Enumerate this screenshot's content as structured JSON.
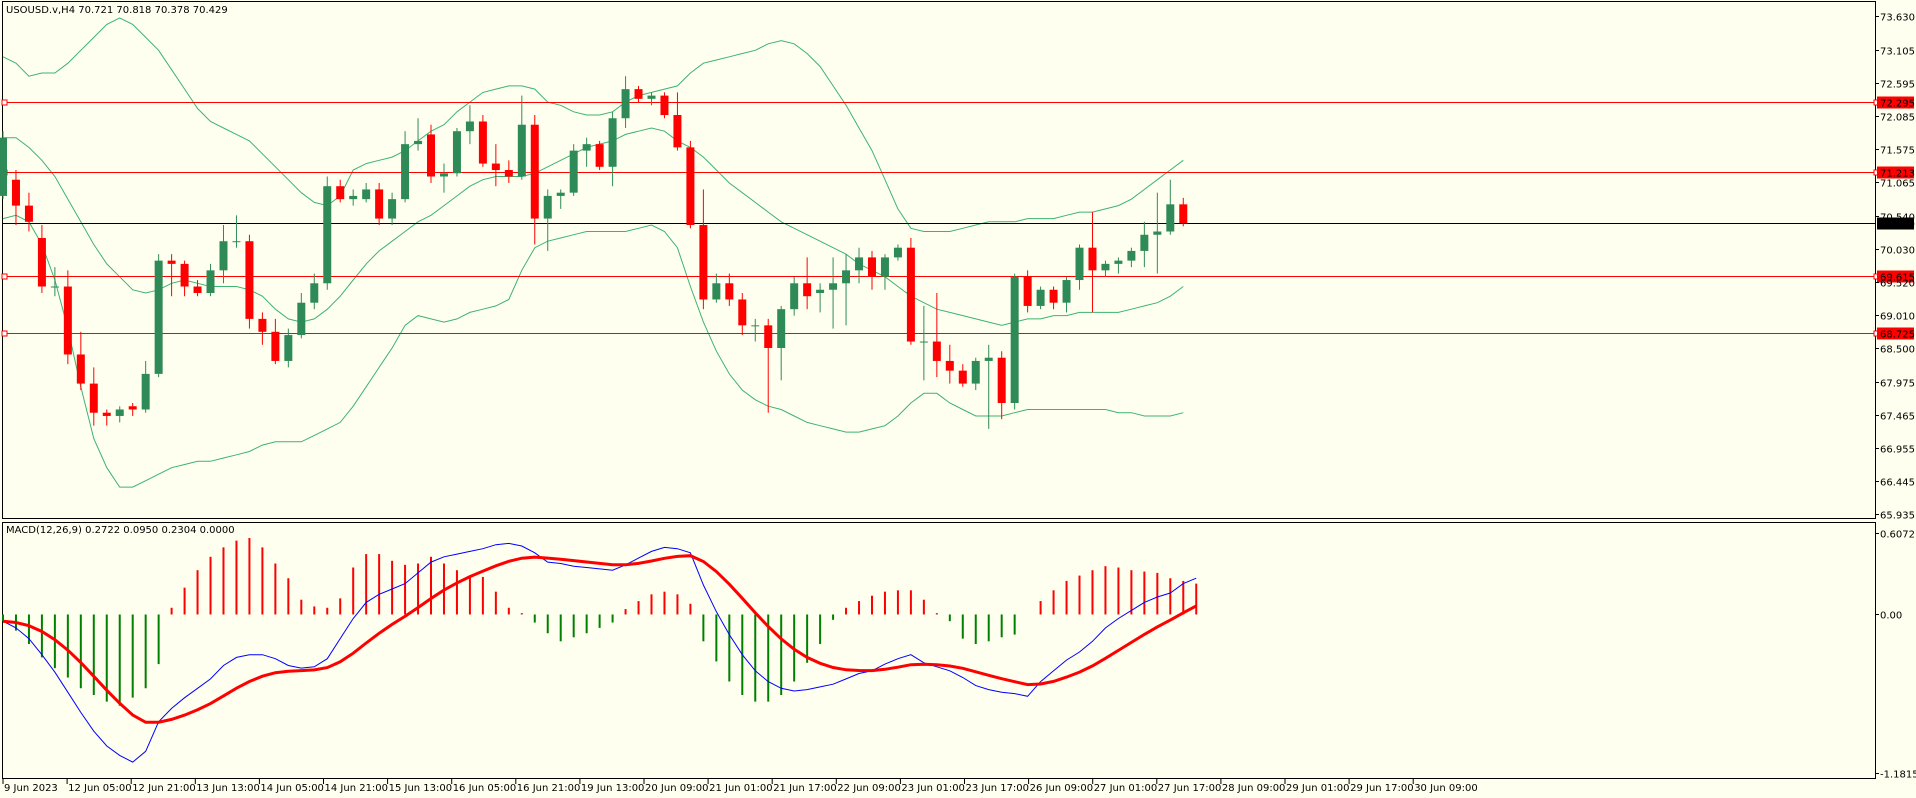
{
  "symbol_info": {
    "title": "USOUSD.v,H4  70.721 70.818 70.378 70.429"
  },
  "macd_info": {
    "title": "MACD(12,26,9) 0.2722 0.0950 0.2304 0.0000"
  },
  "colors": {
    "background": "#fffff0",
    "bull_candle": "#2e8b57",
    "bear_candle": "#ff0000",
    "bollinger": "#3cb371",
    "level_line": "#ff0000",
    "price_line": "#000000",
    "macd_pos_hist": "#ff0000",
    "macd_neg_hist": "#008000",
    "macd_line": "#0000ff",
    "signal_line": "#ff0000"
  },
  "price_axis": {
    "ticks": [
      "73.630",
      "73.105",
      "72.595",
      "72.085",
      "71.575",
      "71.065",
      "70.540",
      "70.030",
      "69.520",
      "69.010",
      "68.500",
      "67.975",
      "67.465",
      "66.955",
      "66.445",
      "65.935"
    ],
    "range": [
      65.935,
      73.63
    ]
  },
  "levels": [
    {
      "price": 72.295,
      "label": "72.295"
    },
    {
      "price": 71.213,
      "label": "71.213"
    },
    {
      "price": 69.615,
      "label": "69.615"
    },
    {
      "price": 68.725,
      "label": "68.725"
    }
  ],
  "current_price": {
    "price": 70.429,
    "label": "70.429"
  },
  "macd_axis": {
    "ticks": [
      "0.6072",
      "0.00",
      "-1.1815"
    ],
    "range": [
      -1.1815,
      0.6072
    ]
  },
  "time_axis": {
    "labels": [
      "9 Jun 2023",
      "12 Jun 05:00",
      "12 Jun 21:00",
      "13 Jun 13:00",
      "14 Jun 05:00",
      "14 Jun 21:00",
      "15 Jun 13:00",
      "16 Jun 05:00",
      "16 Jun 21:00",
      "19 Jun 13:00",
      "20 Jun 09:00",
      "21 Jun 01:00",
      "21 Jun 17:00",
      "22 Jun 09:00",
      "23 Jun 01:00",
      "23 Jun 17:00",
      "26 Jun 09:00",
      "27 Jun 01:00",
      "27 Jun 17:00",
      "28 Jun 09:00",
      "29 Jun 01:00",
      "29 Jun 17:00",
      "30 Jun 09:00"
    ]
  },
  "chart_data": [
    {
      "type": "candlestick",
      "title": "USOUSD.v,H4",
      "ylim": [
        65.935,
        73.63
      ],
      "candles": [
        {
          "o": 70.85,
          "h": 71.85,
          "l": 70.8,
          "c": 71.75
        },
        {
          "o": 71.1,
          "h": 71.25,
          "l": 70.4,
          "c": 70.7
        },
        {
          "o": 70.7,
          "h": 70.9,
          "l": 70.3,
          "c": 70.45
        },
        {
          "o": 70.2,
          "h": 70.4,
          "l": 69.35,
          "c": 69.45
        },
        {
          "o": 69.45,
          "h": 69.75,
          "l": 69.3,
          "c": 69.45
        },
        {
          "o": 69.45,
          "h": 69.7,
          "l": 68.25,
          "c": 68.4
        },
        {
          "o": 68.4,
          "h": 68.75,
          "l": 67.85,
          "c": 67.95
        },
        {
          "o": 67.95,
          "h": 68.2,
          "l": 67.3,
          "c": 67.5
        },
        {
          "o": 67.5,
          "h": 67.55,
          "l": 67.3,
          "c": 67.45
        },
        {
          "o": 67.45,
          "h": 67.6,
          "l": 67.35,
          "c": 67.55
        },
        {
          "o": 67.6,
          "h": 67.65,
          "l": 67.45,
          "c": 67.55
        },
        {
          "o": 67.55,
          "h": 68.3,
          "l": 67.5,
          "c": 68.1
        },
        {
          "o": 68.1,
          "h": 69.95,
          "l": 68.05,
          "c": 69.85
        },
        {
          "o": 69.85,
          "h": 69.95,
          "l": 69.3,
          "c": 69.8
        },
        {
          "o": 69.8,
          "h": 69.85,
          "l": 69.3,
          "c": 69.45
        },
        {
          "o": 69.45,
          "h": 69.55,
          "l": 69.3,
          "c": 69.35
        },
        {
          "o": 69.35,
          "h": 69.8,
          "l": 69.3,
          "c": 69.7
        },
        {
          "o": 69.7,
          "h": 70.4,
          "l": 69.5,
          "c": 70.15
        },
        {
          "o": 70.15,
          "h": 70.55,
          "l": 70.05,
          "c": 70.15
        },
        {
          "o": 70.15,
          "h": 70.25,
          "l": 68.8,
          "c": 68.95
        },
        {
          "o": 68.95,
          "h": 69.05,
          "l": 68.55,
          "c": 68.75
        },
        {
          "o": 68.75,
          "h": 68.95,
          "l": 68.25,
          "c": 68.3
        },
        {
          "o": 68.3,
          "h": 68.8,
          "l": 68.2,
          "c": 68.7
        },
        {
          "o": 68.7,
          "h": 69.35,
          "l": 68.65,
          "c": 69.2
        },
        {
          "o": 69.2,
          "h": 69.65,
          "l": 69.1,
          "c": 69.5
        },
        {
          "o": 69.5,
          "h": 71.15,
          "l": 69.4,
          "c": 71.0
        },
        {
          "o": 71.0,
          "h": 71.1,
          "l": 70.75,
          "c": 70.8
        },
        {
          "o": 70.8,
          "h": 70.95,
          "l": 70.7,
          "c": 70.85
        },
        {
          "o": 70.8,
          "h": 71.05,
          "l": 70.75,
          "c": 70.95
        },
        {
          "o": 70.95,
          "h": 71.05,
          "l": 70.4,
          "c": 70.5
        },
        {
          "o": 70.5,
          "h": 70.9,
          "l": 70.4,
          "c": 70.8
        },
        {
          "o": 70.8,
          "h": 71.85,
          "l": 70.75,
          "c": 71.65
        },
        {
          "o": 71.65,
          "h": 72.05,
          "l": 71.55,
          "c": 71.7
        },
        {
          "o": 71.8,
          "h": 71.95,
          "l": 71.05,
          "c": 71.15
        },
        {
          "o": 71.15,
          "h": 71.35,
          "l": 70.9,
          "c": 71.2
        },
        {
          "o": 71.2,
          "h": 71.9,
          "l": 71.15,
          "c": 71.85
        },
        {
          "o": 71.85,
          "h": 72.25,
          "l": 71.65,
          "c": 72.0
        },
        {
          "o": 72.0,
          "h": 72.1,
          "l": 71.3,
          "c": 71.35
        },
        {
          "o": 71.35,
          "h": 71.65,
          "l": 71.0,
          "c": 71.25
        },
        {
          "o": 71.25,
          "h": 71.4,
          "l": 71.05,
          "c": 71.15
        },
        {
          "o": 71.15,
          "h": 72.4,
          "l": 71.1,
          "c": 71.95
        },
        {
          "o": 71.95,
          "h": 72.1,
          "l": 70.1,
          "c": 70.5
        },
        {
          "o": 70.5,
          "h": 70.95,
          "l": 70.0,
          "c": 70.85
        },
        {
          "o": 70.85,
          "h": 70.95,
          "l": 70.65,
          "c": 70.9
        },
        {
          "o": 70.9,
          "h": 71.65,
          "l": 70.85,
          "c": 71.55
        },
        {
          "o": 71.55,
          "h": 71.75,
          "l": 71.3,
          "c": 71.65
        },
        {
          "o": 71.65,
          "h": 71.7,
          "l": 71.25,
          "c": 71.3
        },
        {
          "o": 71.3,
          "h": 72.15,
          "l": 71.0,
          "c": 72.05
        },
        {
          "o": 72.05,
          "h": 72.7,
          "l": 71.9,
          "c": 72.5
        },
        {
          "o": 72.5,
          "h": 72.55,
          "l": 72.3,
          "c": 72.35
        },
        {
          "o": 72.35,
          "h": 72.45,
          "l": 72.25,
          "c": 72.4
        },
        {
          "o": 72.4,
          "h": 72.45,
          "l": 72.05,
          "c": 72.1
        },
        {
          "o": 72.1,
          "h": 72.45,
          "l": 71.55,
          "c": 71.6
        },
        {
          "o": 71.6,
          "h": 71.7,
          "l": 70.35,
          "c": 70.4
        },
        {
          "o": 70.4,
          "h": 70.95,
          "l": 69.1,
          "c": 69.25
        },
        {
          "o": 69.25,
          "h": 69.65,
          "l": 69.2,
          "c": 69.5
        },
        {
          "o": 69.5,
          "h": 69.65,
          "l": 69.15,
          "c": 69.25
        },
        {
          "o": 69.25,
          "h": 69.35,
          "l": 68.7,
          "c": 68.85
        },
        {
          "o": 68.85,
          "h": 68.95,
          "l": 68.6,
          "c": 68.85
        },
        {
          "o": 68.85,
          "h": 68.95,
          "l": 67.5,
          "c": 68.5
        },
        {
          "o": 68.5,
          "h": 69.15,
          "l": 68.0,
          "c": 69.1
        },
        {
          "o": 69.1,
          "h": 69.6,
          "l": 69.0,
          "c": 69.5
        },
        {
          "o": 69.5,
          "h": 69.9,
          "l": 69.1,
          "c": 69.3
        },
        {
          "o": 69.35,
          "h": 69.5,
          "l": 69.05,
          "c": 69.4
        },
        {
          "o": 69.4,
          "h": 69.9,
          "l": 68.8,
          "c": 69.5
        },
        {
          "o": 69.5,
          "h": 69.95,
          "l": 68.85,
          "c": 69.7
        },
        {
          "o": 69.7,
          "h": 70.05,
          "l": 69.5,
          "c": 69.9
        },
        {
          "o": 69.9,
          "h": 70.0,
          "l": 69.4,
          "c": 69.6
        },
        {
          "o": 69.6,
          "h": 69.95,
          "l": 69.4,
          "c": 69.9
        },
        {
          "o": 69.9,
          "h": 70.1,
          "l": 69.85,
          "c": 70.05
        },
        {
          "o": 70.05,
          "h": 70.2,
          "l": 68.55,
          "c": 68.6
        },
        {
          "o": 68.6,
          "h": 69.15,
          "l": 68.0,
          "c": 68.6
        },
        {
          "o": 68.6,
          "h": 69.35,
          "l": 68.05,
          "c": 68.3
        },
        {
          "o": 68.3,
          "h": 68.55,
          "l": 67.95,
          "c": 68.15
        },
        {
          "o": 68.15,
          "h": 68.25,
          "l": 67.9,
          "c": 67.95
        },
        {
          "o": 67.95,
          "h": 68.35,
          "l": 67.85,
          "c": 68.3
        },
        {
          "o": 68.3,
          "h": 68.55,
          "l": 67.25,
          "c": 68.35
        },
        {
          "o": 68.35,
          "h": 68.45,
          "l": 67.4,
          "c": 67.65
        },
        {
          "o": 67.65,
          "h": 69.65,
          "l": 67.55,
          "c": 69.6
        },
        {
          "o": 69.6,
          "h": 69.7,
          "l": 69.05,
          "c": 69.15
        },
        {
          "o": 69.15,
          "h": 69.45,
          "l": 69.1,
          "c": 69.4
        },
        {
          "o": 69.4,
          "h": 69.45,
          "l": 69.1,
          "c": 69.2
        },
        {
          "o": 69.2,
          "h": 69.6,
          "l": 69.05,
          "c": 69.55
        },
        {
          "o": 69.55,
          "h": 70.1,
          "l": 69.4,
          "c": 70.05
        },
        {
          "o": 70.05,
          "h": 70.6,
          "l": 69.05,
          "c": 69.7
        },
        {
          "o": 69.7,
          "h": 69.85,
          "l": 69.6,
          "c": 69.8
        },
        {
          "o": 69.8,
          "h": 69.9,
          "l": 69.65,
          "c": 69.85
        },
        {
          "o": 69.85,
          "h": 70.05,
          "l": 69.75,
          "c": 70.0
        },
        {
          "o": 70.0,
          "h": 70.45,
          "l": 69.75,
          "c": 70.25
        },
        {
          "o": 70.25,
          "h": 70.9,
          "l": 69.65,
          "c": 70.3
        },
        {
          "o": 70.3,
          "h": 71.1,
          "l": 70.25,
          "c": 70.72
        },
        {
          "o": 70.72,
          "h": 70.82,
          "l": 70.38,
          "c": 70.43
        }
      ],
      "bollinger": {
        "upper": [
          73.0,
          72.9,
          72.7,
          72.75,
          72.75,
          72.9,
          73.1,
          73.3,
          73.5,
          73.6,
          73.5,
          73.3,
          73.1,
          72.8,
          72.5,
          72.2,
          72.0,
          71.9,
          71.8,
          71.7,
          71.5,
          71.3,
          71.1,
          70.9,
          70.75,
          70.7,
          70.85,
          71.25,
          71.35,
          71.4,
          71.45,
          71.55,
          71.7,
          71.85,
          71.95,
          72.15,
          72.3,
          72.45,
          72.5,
          72.55,
          72.55,
          72.5,
          72.3,
          72.25,
          72.15,
          72.1,
          72.1,
          72.15,
          72.3,
          72.4,
          72.45,
          72.5,
          72.55,
          72.75,
          72.9,
          72.95,
          73.0,
          73.05,
          73.1,
          73.2,
          73.25,
          73.2,
          73.05,
          72.85,
          72.55,
          72.25,
          71.9,
          71.55,
          71.1,
          70.65,
          70.35,
          70.3,
          70.3,
          70.3,
          70.35,
          70.4,
          70.45,
          70.45,
          70.45,
          70.5,
          70.5,
          70.5,
          70.55,
          70.6,
          70.6,
          70.65,
          70.7,
          70.8,
          70.95,
          71.1,
          71.25,
          71.4
        ],
        "middle": [
          71.75,
          71.75,
          71.6,
          71.4,
          71.15,
          70.8,
          70.45,
          70.1,
          69.8,
          69.6,
          69.4,
          69.35,
          69.4,
          69.5,
          69.55,
          69.5,
          69.45,
          69.45,
          69.45,
          69.4,
          69.3,
          69.1,
          68.95,
          68.9,
          68.95,
          69.1,
          69.3,
          69.55,
          69.8,
          70.0,
          70.15,
          70.3,
          70.45,
          70.55,
          70.7,
          70.85,
          71.0,
          71.1,
          71.15,
          71.15,
          71.15,
          71.2,
          71.3,
          71.4,
          71.5,
          71.6,
          71.65,
          71.7,
          71.8,
          71.85,
          71.9,
          71.85,
          71.7,
          71.6,
          71.45,
          71.25,
          71.05,
          70.9,
          70.75,
          70.6,
          70.45,
          70.35,
          70.25,
          70.15,
          70.05,
          69.95,
          69.8,
          69.7,
          69.6,
          69.45,
          69.3,
          69.2,
          69.1,
          69.05,
          69.0,
          68.95,
          68.9,
          68.85,
          68.9,
          68.95,
          68.95,
          69.0,
          69.0,
          69.05,
          69.05,
          69.05,
          69.05,
          69.1,
          69.15,
          69.2,
          69.3,
          69.45
        ],
        "lower": [
          70.5,
          70.55,
          70.45,
          70.1,
          69.55,
          68.8,
          67.9,
          67.1,
          66.65,
          66.35,
          66.35,
          66.45,
          66.55,
          66.65,
          66.7,
          66.75,
          66.75,
          66.8,
          66.85,
          66.9,
          67.0,
          67.05,
          67.05,
          67.05,
          67.15,
          67.25,
          67.35,
          67.6,
          67.9,
          68.2,
          68.5,
          68.85,
          69.0,
          68.95,
          68.9,
          68.95,
          69.05,
          69.1,
          69.15,
          69.25,
          69.7,
          70.05,
          70.15,
          70.2,
          70.25,
          70.3,
          70.3,
          70.3,
          70.3,
          70.35,
          70.4,
          70.3,
          70.05,
          69.45,
          68.9,
          68.45,
          68.1,
          67.85,
          67.7,
          67.6,
          67.55,
          67.45,
          67.35,
          67.3,
          67.25,
          67.2,
          67.2,
          67.25,
          67.3,
          67.45,
          67.65,
          67.8,
          67.8,
          67.65,
          67.55,
          67.45,
          67.45,
          67.45,
          67.5,
          67.55,
          67.55,
          67.55,
          67.55,
          67.55,
          67.55,
          67.55,
          67.5,
          67.5,
          67.45,
          67.45,
          67.45,
          67.5
        ]
      }
    },
    {
      "type": "macd",
      "title": "MACD(12,26,9)",
      "ylim": [
        -1.1815,
        0.6072
      ],
      "histogram": [
        -0.05,
        -0.12,
        -0.22,
        -0.32,
        -0.4,
        -0.47,
        -0.55,
        -0.6,
        -0.65,
        -0.68,
        -0.62,
        -0.55,
        -0.37,
        0.05,
        0.2,
        0.33,
        0.43,
        0.5,
        0.55,
        0.57,
        0.5,
        0.38,
        0.27,
        0.11,
        0.06,
        0.05,
        0.12,
        0.35,
        0.45,
        0.45,
        0.4,
        0.37,
        0.38,
        0.43,
        0.38,
        0.33,
        0.29,
        0.28,
        0.17,
        0.05,
        0.01,
        -0.06,
        -0.14,
        -0.2,
        -0.17,
        -0.14,
        -0.1,
        -0.06,
        0.04,
        0.1,
        0.15,
        0.17,
        0.15,
        0.08,
        -0.2,
        -0.35,
        -0.5,
        -0.6,
        -0.65,
        -0.65,
        -0.6,
        -0.5,
        -0.36,
        -0.22,
        -0.04,
        0.05,
        0.1,
        0.14,
        0.17,
        0.18,
        0.18,
        0.11,
        0.01,
        -0.05,
        -0.18,
        -0.22,
        -0.2,
        -0.17,
        -0.15,
        0.0,
        0.1,
        0.18,
        0.25,
        0.29,
        0.33,
        0.36,
        0.35,
        0.33,
        0.32,
        0.31,
        0.27,
        0.25,
        0.23
      ],
      "macd": [
        -0.05,
        -0.1,
        -0.18,
        -0.3,
        -0.43,
        -0.58,
        -0.73,
        -0.87,
        -0.98,
        -1.05,
        -1.1,
        -1.02,
        -0.8,
        -0.7,
        -0.62,
        -0.55,
        -0.48,
        -0.38,
        -0.32,
        -0.3,
        -0.3,
        -0.33,
        -0.38,
        -0.4,
        -0.39,
        -0.33,
        -0.18,
        -0.03,
        0.09,
        0.15,
        0.19,
        0.23,
        0.31,
        0.39,
        0.43,
        0.45,
        0.47,
        0.49,
        0.52,
        0.53,
        0.51,
        0.46,
        0.39,
        0.38,
        0.36,
        0.35,
        0.34,
        0.33,
        0.37,
        0.42,
        0.47,
        0.5,
        0.49,
        0.46,
        0.22,
        0.02,
        -0.15,
        -0.3,
        -0.42,
        -0.5,
        -0.55,
        -0.57,
        -0.56,
        -0.54,
        -0.52,
        -0.48,
        -0.44,
        -0.42,
        -0.37,
        -0.33,
        -0.3,
        -0.36,
        -0.39,
        -0.42,
        -0.47,
        -0.53,
        -0.56,
        -0.58,
        -0.59,
        -0.61,
        -0.5,
        -0.42,
        -0.34,
        -0.28,
        -0.2,
        -0.1,
        -0.03,
        0.03,
        0.09,
        0.13,
        0.16,
        0.23,
        0.27
      ]
    }
  ]
}
